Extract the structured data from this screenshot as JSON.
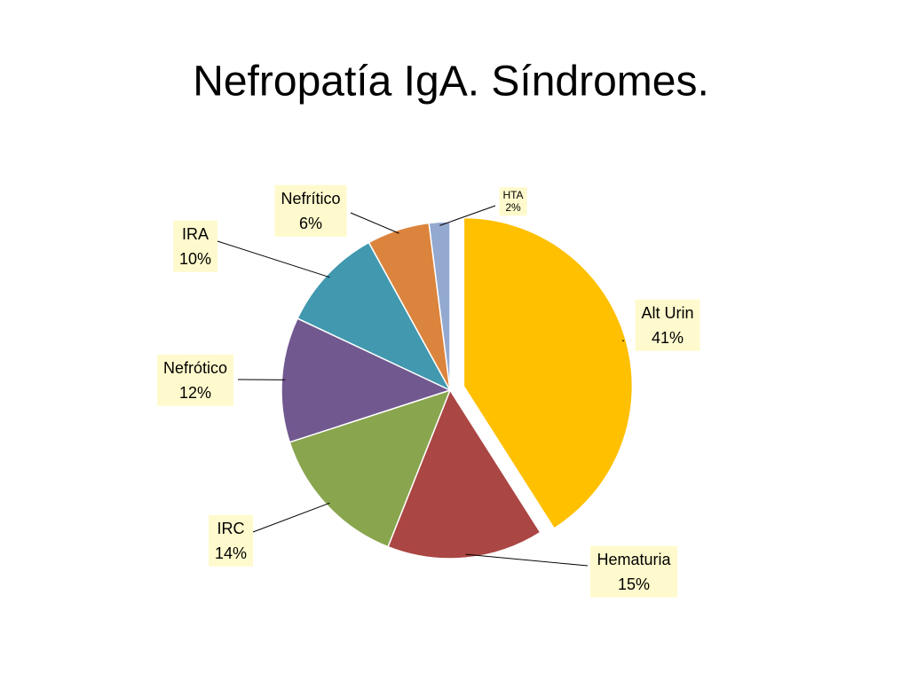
{
  "chart_data": {
    "type": "pie",
    "title": "Nefropatía IgA. Síndromes.",
    "categories": [
      "Alt Urin",
      "Hematuria",
      "IRC",
      "Nefrótico",
      "IRA",
      "Nefrítico",
      "HTA"
    ],
    "values": [
      41,
      15,
      14,
      12,
      10,
      6,
      2
    ],
    "value_labels": [
      "41%",
      "15%",
      "14%",
      "12%",
      "10%",
      "6%",
      "2%"
    ],
    "colors": [
      "#FFC000",
      "#AA4643",
      "#89A54E",
      "#71588F",
      "#4198AF",
      "#DB843D",
      "#93A9CF"
    ]
  }
}
